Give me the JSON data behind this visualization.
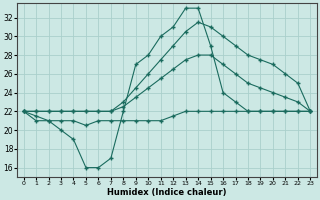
{
  "xlabel": "Humidex (Indice chaleur)",
  "background_color": "#cce8e4",
  "grid_color": "#aad0cc",
  "line_color": "#1a6b5e",
  "xlim": [
    -0.5,
    23.5
  ],
  "ylim": [
    15.0,
    33.5
  ],
  "xticks": [
    0,
    1,
    2,
    3,
    4,
    5,
    6,
    7,
    8,
    9,
    10,
    11,
    12,
    13,
    14,
    15,
    16,
    17,
    18,
    19,
    20,
    21,
    22,
    23
  ],
  "yticks": [
    16,
    18,
    20,
    22,
    24,
    26,
    28,
    30,
    32
  ],
  "line1_x": [
    0,
    1,
    2,
    3,
    4,
    5,
    6,
    7,
    8,
    9,
    10,
    11,
    12,
    13,
    14,
    15,
    16,
    17,
    18,
    19,
    20,
    21,
    22,
    23
  ],
  "line1_y": [
    22,
    21,
    21,
    20,
    19,
    16,
    16,
    17,
    22,
    27,
    28,
    30,
    31,
    33,
    33,
    29,
    24,
    23,
    22,
    22,
    22,
    22,
    22,
    22
  ],
  "line2_x": [
    0,
    1,
    2,
    3,
    4,
    5,
    6,
    7,
    8,
    9,
    10,
    11,
    12,
    13,
    14,
    15,
    16,
    17,
    18,
    19,
    20,
    21,
    22,
    23
  ],
  "line2_y": [
    22,
    21.5,
    21,
    21,
    21,
    20.5,
    21,
    21,
    21,
    21,
    21,
    21,
    21.5,
    22,
    22,
    22,
    22,
    22,
    22,
    22,
    22,
    22,
    22,
    22
  ],
  "line3_x": [
    0,
    1,
    2,
    3,
    4,
    5,
    6,
    7,
    8,
    9,
    10,
    11,
    12,
    13,
    14,
    15,
    16,
    17,
    18,
    19,
    20,
    21,
    22,
    23
  ],
  "line3_y": [
    22,
    22,
    22,
    22,
    22,
    22,
    22,
    22,
    22.5,
    23.5,
    24.5,
    25.5,
    26.5,
    27.5,
    28,
    28,
    27,
    26,
    25,
    24.5,
    24,
    23.5,
    23,
    22
  ],
  "line4_x": [
    0,
    1,
    2,
    3,
    4,
    5,
    6,
    7,
    8,
    9,
    10,
    11,
    12,
    13,
    14,
    15,
    16,
    17,
    18,
    19,
    20,
    21,
    22,
    23
  ],
  "line4_y": [
    22,
    22,
    22,
    22,
    22,
    22,
    22,
    22,
    23,
    24.5,
    26,
    27.5,
    29,
    30.5,
    31.5,
    31,
    30,
    29,
    28,
    27.5,
    27,
    26,
    25,
    22
  ]
}
